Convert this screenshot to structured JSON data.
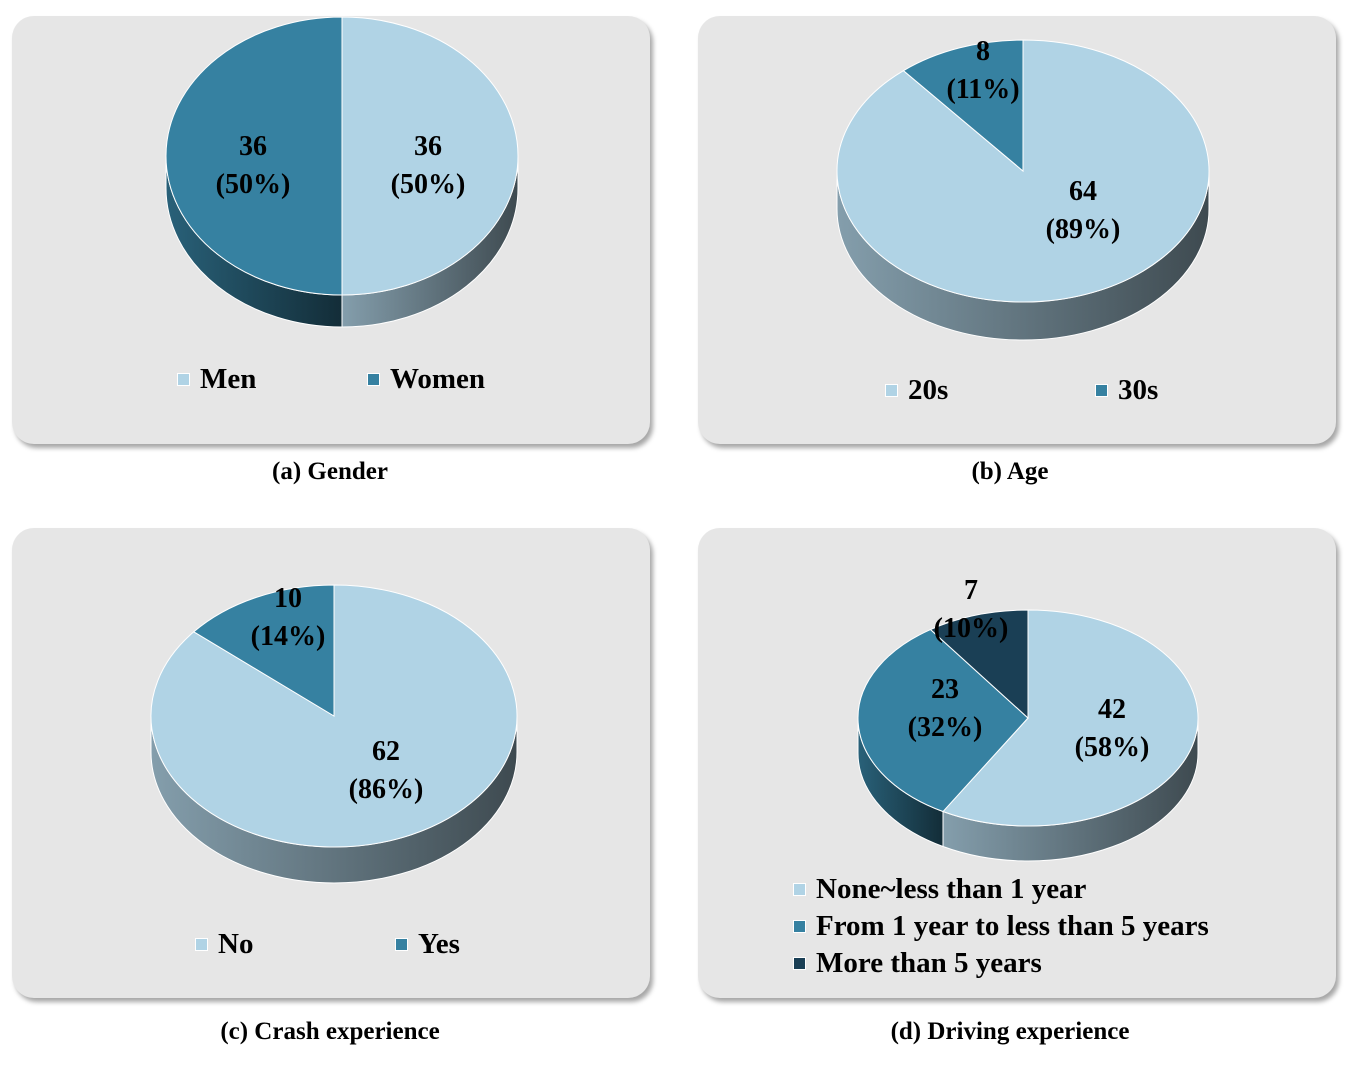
{
  "colors": {
    "light": "#b0d3e5",
    "mid": "#3681a1",
    "dark": "#1a3f55",
    "panel": "#e6e6e6"
  },
  "chart_data": [
    {
      "type": "pie",
      "caption": "(a) Gender",
      "slices": [
        {
          "name": "Men",
          "value": 36,
          "percent": "(50%)",
          "color": "#b0d3e5"
        },
        {
          "name": "Women",
          "value": 36,
          "percent": "(50%)",
          "color": "#3681a1"
        }
      ],
      "legend_position": "bottom"
    },
    {
      "type": "pie",
      "caption": "(b) Age",
      "slices": [
        {
          "name": "20s",
          "value": 64,
          "percent": "(89%)",
          "color": "#b0d3e5"
        },
        {
          "name": "30s",
          "value": 8,
          "percent": "(11%)",
          "color": "#3681a1"
        }
      ],
      "legend_position": "bottom"
    },
    {
      "type": "pie",
      "caption": "(c) Crash experience",
      "slices": [
        {
          "name": "No",
          "value": 62,
          "percent": "(86%)",
          "color": "#b0d3e5"
        },
        {
          "name": "Yes",
          "value": 10,
          "percent": "(14%)",
          "color": "#3681a1"
        }
      ],
      "legend_position": "bottom"
    },
    {
      "type": "pie",
      "caption": "(d) Driving experience",
      "slices": [
        {
          "name": "None~less than 1 year",
          "value": 42,
          "percent": "(58%)",
          "color": "#b0d3e5"
        },
        {
          "name": "From 1 year to less than 5 years",
          "value": 23,
          "percent": "(32%)",
          "color": "#3681a1"
        },
        {
          "name": "More than 5 years",
          "value": 7,
          "percent": "(10%)",
          "color": "#1a3f55"
        }
      ],
      "legend_position": "bottom"
    }
  ]
}
